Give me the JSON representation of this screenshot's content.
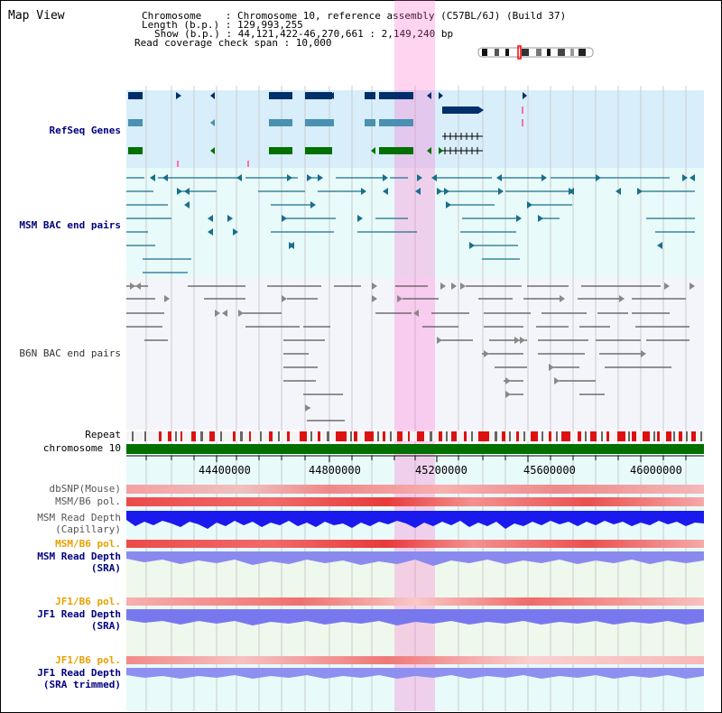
{
  "title": "Map View",
  "header": {
    "chromosome_label": "Chromosome    : Chromosome 10, reference assembly (C57BL/6J) (Build 37)",
    "length_label": "Length (b.p.) : 129,993,255",
    "show_label": "Show (b.p.) : 44,121,422-46,270,661 : 2,149,240 bp",
    "coverage_label": "Read coverage check span : 10,000"
  },
  "tracks": {
    "refseq": "RefSeq Genes",
    "msm_bac": "MSM BAC end pairs",
    "b6n_bac": "B6N BAC end pairs",
    "repeat": "Repeat",
    "chromosome": "chromosome 10",
    "dbsnp": "dbSNP(Mouse)",
    "msm_b6_pol": "MSM/B6 pol.",
    "msm_read_depth_cap_1": "MSM Read Depth",
    "msm_read_depth_cap_2": "(Capillary)",
    "msm_b6_pol_sra": "MSM/B6 pol.",
    "msm_read_depth_sra_1": "MSM Read Depth",
    "msm_read_depth_sra_2": "(SRA)",
    "jf1_b6_pol_1": "JF1/B6 pol.",
    "jf1_read_depth_1": "JF1 Read Depth",
    "jf1_read_depth_sra": "(SRA)",
    "jf1_b6_pol_2": "JF1/B6 pol.",
    "jf1_read_depth_2": "JF1 Read Depth",
    "jf1_read_depth_trimmed": "(SRA trimmed)"
  },
  "axis_ticks": [
    "44400000",
    "44800000",
    "45200000",
    "45600000",
    "46000000"
  ],
  "colors": {
    "label_blue": "#000080",
    "label_orange": "#e8a000",
    "highlight": "#ffd6f4",
    "refseq_bg": "#d8eefa",
    "msm_bg": "#e8fafa",
    "b6n_bg": "#f4f4fb",
    "chrom_bar": "#007000",
    "gene_dark": "#002f6c",
    "gene_mid": "#4a90b0",
    "gene_green": "#007000"
  }
}
